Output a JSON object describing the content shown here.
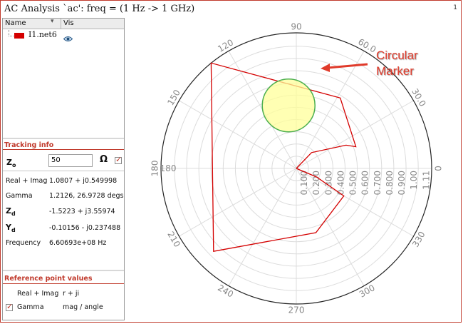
{
  "window": {
    "title": "AC Analysis `ac': freq = (1 Hz -> 1 GHz)",
    "number": "1"
  },
  "signal_list": {
    "columns": [
      "Name",
      "Vis"
    ],
    "items": [
      {
        "name": "I1.net6",
        "color": "#d40000",
        "visible_icon": "eye-icon"
      }
    ]
  },
  "tracking": {
    "header": "Tracking info",
    "z0_value": "50",
    "z0_unit": "Ω",
    "rows": [
      {
        "label": "Real + Imag",
        "value": "1.0807 + j0.549998"
      },
      {
        "label": "Gamma",
        "value": "1.2126, 26.9728 degs"
      },
      {
        "label": "Zd",
        "value": "-1.5223 + j3.55974"
      },
      {
        "label": "Yd",
        "value": "-0.10156 - j0.237488"
      },
      {
        "label": "Frequency",
        "value": "6.60693e+08 Hz"
      }
    ]
  },
  "reference": {
    "header": "Reference point values",
    "real_imag_label": "Real + Imag",
    "real_imag_value": "r + ji",
    "gamma_label": "Gamma",
    "gamma_value": "mag / angle"
  },
  "annotation": {
    "line1": "Circular",
    "line2": "Marker"
  },
  "chart_data": {
    "type": "polar",
    "angle_labels": [
      "0",
      "30.0",
      "60.0",
      "90",
      "120",
      "150",
      "180",
      "210",
      "240",
      "270",
      "300",
      "330"
    ],
    "left_axis_label": "180",
    "radial_labels": [
      "0.100",
      "0.200",
      "0.300",
      "0.400",
      "0.500",
      "0.600",
      "0.700",
      "0.800",
      "0.900",
      "1.00",
      "1.11"
    ],
    "series": [
      {
        "color": "#d40000",
        "points": [
          {
            "r": 0.0,
            "deg": 0
          },
          {
            "r": 0.18,
            "deg": 46
          },
          {
            "r": 0.45,
            "deg": 25
          },
          {
            "r": 0.52,
            "deg": 20
          },
          {
            "r": 0.68,
            "deg": 58
          },
          {
            "r": 1.11,
            "deg": 129
          },
          {
            "r": 0.96,
            "deg": 225
          },
          {
            "r": 0.55,
            "deg": 287
          },
          {
            "r": 0.45,
            "deg": 330
          },
          {
            "r": 0.18,
            "deg": 337
          },
          {
            "r": 0.0,
            "deg": 0
          }
        ]
      }
    ],
    "marker": {
      "r": 0.52,
      "deg": 97
    }
  },
  "colors": {
    "accent": "#c0392b",
    "trace": "#d40000",
    "marker_fill": "#ffff99",
    "marker_edge": "#4caf50",
    "callout": "#e03a2a"
  }
}
